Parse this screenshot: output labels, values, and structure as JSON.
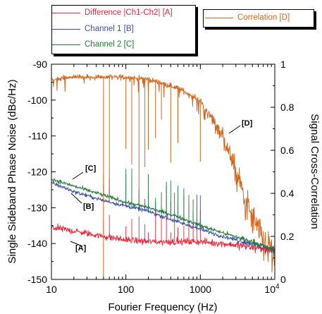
{
  "chart_data": {
    "type": "line",
    "xlabel": "Fourier Frequency (Hz)",
    "ylabel_left": "Single Sideband Phase Noise (dBc/Hz)",
    "ylabel_right": "Signal Cross-Correlation",
    "x_scale": "log",
    "xlim": [
      10,
      10000
    ],
    "x_ticks": [
      {
        "value": 10,
        "label": "10"
      },
      {
        "value": 100,
        "label": "100"
      },
      {
        "value": 1000,
        "label": "1000"
      }
    ],
    "x_tick_last": {
      "base": "10",
      "exp": "4"
    },
    "ylim_left": [
      -150,
      -90
    ],
    "y_ticks_left": [
      -150,
      -140,
      -130,
      -120,
      -110,
      -100,
      -90
    ],
    "ylim_right": [
      0,
      1
    ],
    "y_ticks_right": [
      0,
      0.2,
      0.4,
      0.6,
      0.8,
      1
    ],
    "colors": {
      "A": "#e8253a",
      "B": "#3a4fa8",
      "C": "#1f7a32",
      "D": "#d2661e"
    },
    "series": [
      {
        "key": "A",
        "name": "Difference |Ch1-Ch2|  [A]",
        "axis": "left",
        "x": [
          10,
          20,
          50,
          100,
          200,
          500,
          1000,
          2000,
          5000,
          10000
        ],
        "y": [
          -135.5,
          -136.5,
          -138,
          -139,
          -139.5,
          -139.5,
          -139.5,
          -140,
          -141,
          -142
        ]
      },
      {
        "key": "B",
        "name": "Channel 1  [B]",
        "axis": "left",
        "x": [
          10,
          20,
          50,
          100,
          200,
          500,
          1000,
          2000,
          5000,
          10000
        ],
        "y": [
          -123,
          -125.5,
          -128,
          -129.5,
          -131,
          -134,
          -136,
          -138,
          -140,
          -142
        ]
      },
      {
        "key": "C",
        "name": "Channel 2  [C]",
        "axis": "left",
        "x": [
          10,
          20,
          50,
          100,
          200,
          500,
          1000,
          2000,
          5000,
          10000
        ],
        "y": [
          -122,
          -124,
          -126.5,
          -128.5,
          -130,
          -132.5,
          -135,
          -137,
          -139.5,
          -142
        ]
      },
      {
        "key": "D",
        "name": "Correlation  [D]",
        "axis": "right",
        "x": [
          10,
          20,
          50,
          100,
          200,
          500,
          1000,
          2000,
          3000,
          5000,
          7000,
          10000
        ],
        "y": [
          0.93,
          0.94,
          0.94,
          0.94,
          0.93,
          0.89,
          0.83,
          0.67,
          0.5,
          0.28,
          0.18,
          0.1
        ]
      }
    ],
    "annotations": [
      {
        "text": "[A]",
        "series": "A"
      },
      {
        "text": "[B]",
        "series": "B"
      },
      {
        "text": "[C]",
        "series": "C"
      },
      {
        "text": "[D]",
        "series": "D"
      }
    ]
  }
}
